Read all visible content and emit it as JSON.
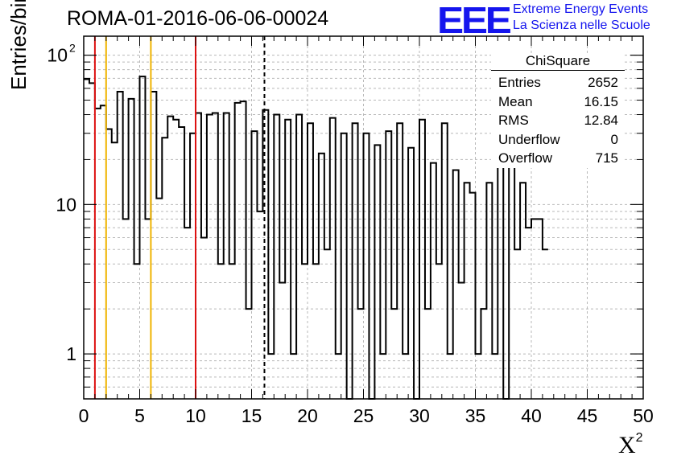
{
  "header": {
    "run_title": "ROMA-01-2016-06-06-00024",
    "logo_text": "EEE",
    "logo_line1": "Extreme Energy Events",
    "logo_line2": "La Scienza nelle Scuole",
    "logo_color": "#1515ee"
  },
  "stats_box": {
    "title": "ChiSquare",
    "rows": [
      {
        "label": "Entries",
        "value": "2652"
      },
      {
        "label": "Mean",
        "value": "16.15"
      },
      {
        "label": "RMS",
        "value": "12.84"
      },
      {
        "label": "Underflow",
        "value": "0"
      },
      {
        "label": "Overflow",
        "value": "715"
      }
    ]
  },
  "chart_data": {
    "type": "bar",
    "style": "step-histogram",
    "xlabel": "X",
    "xlabel_superscript": "2",
    "ylabel": "Entries/bin",
    "xlim": [
      0,
      50
    ],
    "ylim": [
      0.5,
      130
    ],
    "y_scale": "log",
    "grid": true,
    "x_ticks": [
      "0",
      "5",
      "10",
      "15",
      "20",
      "25",
      "30",
      "35",
      "40",
      "45",
      "50"
    ],
    "y_tick_labels": [
      {
        "value": 1,
        "base": "1",
        "exp": ""
      },
      {
        "value": 10,
        "base": "10",
        "exp": ""
      },
      {
        "value": 100,
        "base": "10",
        "exp": "2"
      }
    ],
    "bin_width": 0.5,
    "bin_counts": [
      69,
      65,
      44,
      46,
      32,
      26,
      57,
      8,
      51,
      4,
      72,
      8,
      57,
      11,
      28,
      39,
      37,
      33,
      7,
      30,
      41,
      6,
      40,
      41,
      4,
      41,
      4,
      48,
      49,
      2,
      31,
      9,
      43,
      1,
      40,
      3,
      37,
      1,
      40,
      4,
      35,
      4,
      22,
      5,
      38,
      1,
      30,
      0,
      35,
      2,
      30,
      0,
      25,
      1,
      31,
      2,
      35,
      1,
      24,
      0,
      37,
      2,
      19,
      4,
      35,
      1,
      17,
      3,
      14,
      12,
      1,
      2,
      14,
      1,
      19,
      0,
      21,
      5,
      14,
      7,
      8,
      8,
      5
    ],
    "vertical_lines": [
      {
        "x": 1,
        "color": "#dd1111",
        "style": "solid"
      },
      {
        "x": 2,
        "color": "#f0b400",
        "style": "solid"
      },
      {
        "x": 6,
        "color": "#f0b400",
        "style": "solid"
      },
      {
        "x": 10,
        "color": "#dd1111",
        "style": "solid"
      },
      {
        "x": 16.15,
        "color": "#000000",
        "style": "dashed"
      }
    ]
  }
}
